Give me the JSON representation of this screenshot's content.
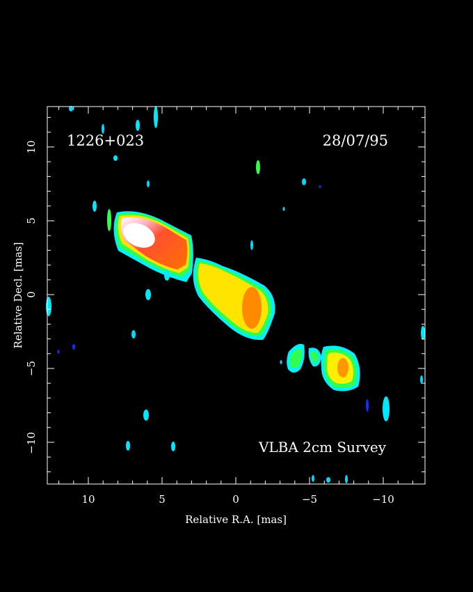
{
  "source_name": "1226+023",
  "obs_date": "28/07/95",
  "survey_label": "VLBA 2cm Survey",
  "axes": {
    "xlabel": "Relative R.A. [mas]",
    "ylabel": "Relative Decl. [mas]",
    "xlim": [
      13,
      -13
    ],
    "ylim": [
      -13,
      13
    ],
    "x_ticks": [
      "10",
      "5",
      "0",
      "−5",
      "−10"
    ],
    "y_ticks": [
      "10",
      "5",
      "0",
      "−5",
      "−10"
    ]
  },
  "colormap": {
    "low": "#1030ff",
    "mid_low": "#00e8ff",
    "mid": "#00ff60",
    "mid_high": "#ffff00",
    "high": "#ff6000",
    "peak": "#ffffff"
  }
}
